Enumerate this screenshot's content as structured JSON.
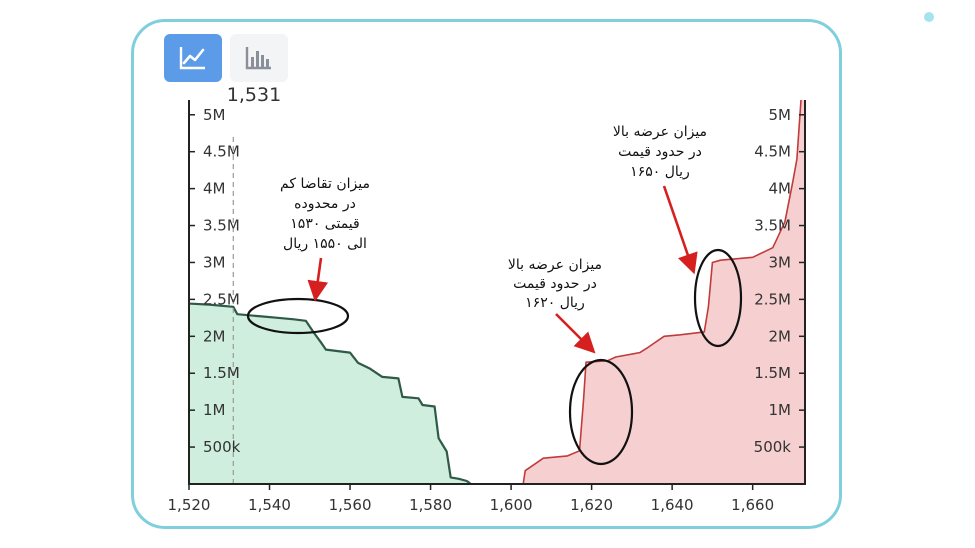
{
  "toolbar": {
    "line_button_icon": "line-chart-icon",
    "bar_button_icon": "bar-chart-icon"
  },
  "cursor_price": "1,531",
  "colors": {
    "bid_fill": "#cfeedd",
    "bid_line": "#2e5a47",
    "ask_fill": "#f6d0d0",
    "ask_line": "#c23b3b",
    "arrow": "#d62020",
    "accent": "#5b9be8"
  },
  "annotations": [
    {
      "name": "demand-note",
      "lines": [
        "میزان تقاضا کم",
        "در محدوده",
        "قیمتی ۱۵۳۰",
        "الی ۱۵۵۰ ریال"
      ]
    },
    {
      "name": "supply-note-1620",
      "lines": [
        "میزان عرضه بالا",
        "در حدود قیمت",
        "۱۶۲۰ ریال"
      ]
    },
    {
      "name": "supply-note-1650",
      "lines": [
        "میزان عرضه بالا",
        "در حدود قیمت",
        "۱۶۵۰ ریال"
      ]
    }
  ],
  "chart_data": {
    "type": "area",
    "xlim": [
      1520,
      1673
    ],
    "ylim": [
      0,
      5200000
    ],
    "x_ticks": [
      1520,
      1540,
      1560,
      1580,
      1600,
      1620,
      1640,
      1660
    ],
    "x_tick_labels": [
      "1,520",
      "1,540",
      "1,560",
      "1,580",
      "1,600",
      "1,620",
      "1,640",
      "1,660"
    ],
    "y_ticks": [
      500000,
      1000000,
      1500000,
      2000000,
      2500000,
      3000000,
      3500000,
      4000000,
      4500000,
      5000000
    ],
    "y_tick_labels": [
      "500k",
      "1M",
      "1.5M",
      "2M",
      "2.5M",
      "3M",
      "3.5M",
      "4M",
      "4.5M",
      "5M"
    ],
    "cursor_x": 1531,
    "series": [
      {
        "side": "bid",
        "points": [
          [
            1517.5,
            3900000
          ],
          [
            1517.7,
            2450000
          ],
          [
            1525,
            2430000
          ],
          [
            1531,
            2400000
          ],
          [
            1532,
            2300000
          ],
          [
            1538,
            2270000
          ],
          [
            1542,
            2250000
          ],
          [
            1546,
            2230000
          ],
          [
            1549,
            2210000
          ],
          [
            1551,
            2050000
          ],
          [
            1553,
            1900000
          ],
          [
            1554,
            1820000
          ],
          [
            1560,
            1780000
          ],
          [
            1562,
            1640000
          ],
          [
            1565,
            1560000
          ],
          [
            1568,
            1450000
          ],
          [
            1572,
            1430000
          ],
          [
            1573,
            1180000
          ],
          [
            1577,
            1160000
          ],
          [
            1578,
            1070000
          ],
          [
            1581,
            1050000
          ],
          [
            1582,
            620000
          ],
          [
            1584,
            440000
          ],
          [
            1585,
            90000
          ],
          [
            1587,
            70000
          ],
          [
            1589,
            40000
          ],
          [
            1590,
            0
          ]
        ]
      },
      {
        "side": "ask",
        "points": [
          [
            1603,
            0
          ],
          [
            1603.5,
            180000
          ],
          [
            1608,
            350000
          ],
          [
            1614,
            380000
          ],
          [
            1617,
            450000
          ],
          [
            1618,
            1150000
          ],
          [
            1618.6,
            1650000
          ],
          [
            1624,
            1670000
          ],
          [
            1626,
            1720000
          ],
          [
            1632,
            1780000
          ],
          [
            1634,
            1850000
          ],
          [
            1638,
            2000000
          ],
          [
            1642,
            2020000
          ],
          [
            1648,
            2060000
          ],
          [
            1649,
            2400000
          ],
          [
            1650,
            3000000
          ],
          [
            1652,
            3030000
          ],
          [
            1660,
            3070000
          ],
          [
            1665,
            3200000
          ],
          [
            1668,
            3550000
          ],
          [
            1670,
            4100000
          ],
          [
            1671,
            4400000
          ],
          [
            1672,
            5200000
          ]
        ]
      }
    ]
  }
}
